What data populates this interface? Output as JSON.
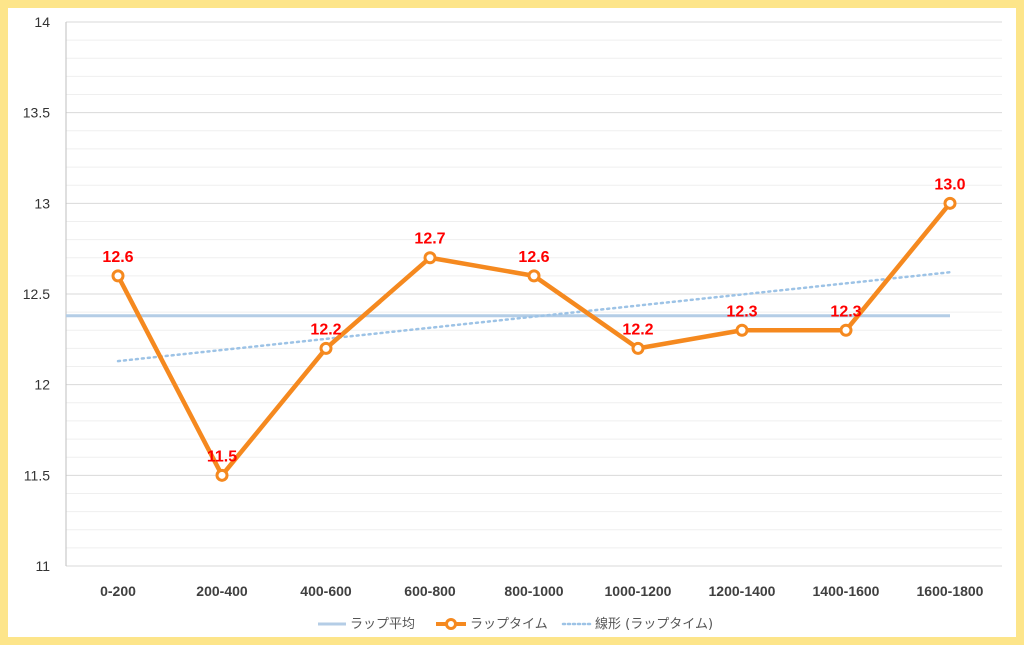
{
  "chart_data": {
    "type": "line",
    "title": "",
    "xlabel": "",
    "ylabel": "",
    "ylim": [
      11,
      14
    ],
    "yticks": [
      "11",
      "11.5",
      "12",
      "12.5",
      "13",
      "13.5",
      "14"
    ],
    "categories": [
      "0-200",
      "200-400",
      "400-600",
      "600-800",
      "800-1000",
      "1000-1200",
      "1200-1400",
      "1400-1600",
      "1600-1800"
    ],
    "series": [
      {
        "name": "ラップタイム",
        "values": [
          12.6,
          11.5,
          12.2,
          12.7,
          12.6,
          12.2,
          12.3,
          12.3,
          13.0
        ],
        "labels": [
          "12.6",
          "11.5",
          "12.2",
          "12.7",
          "12.6",
          "12.2",
          "12.3",
          "12.3",
          "13.0"
        ],
        "color": "#f5891f"
      },
      {
        "name": "ラップ平均",
        "value": 12.38,
        "color": "#b4cde6"
      },
      {
        "name": "線形 (ラップタイム)",
        "start": 12.13,
        "end": 12.62,
        "color": "#9dc3e6"
      }
    ],
    "legend": [
      "ラップ平均",
      "ラップタイム",
      "線形 (ラップタイム)"
    ],
    "label_color": "#ff0000",
    "grid": true,
    "legend_position": "bottom"
  }
}
